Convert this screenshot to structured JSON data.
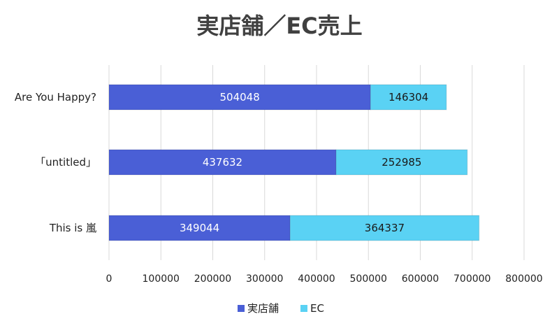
{
  "chart_data": {
    "type": "bar",
    "orientation": "horizontal",
    "stacked": true,
    "title": "実店舗／EC売上",
    "categories": [
      "Are You Happy?",
      "「untitled」",
      "This is 嵐"
    ],
    "series": [
      {
        "name": "実店舗",
        "values": [
          504048,
          437632,
          349044
        ],
        "color": "#4a5fd6",
        "label_color": "#ffffff"
      },
      {
        "name": "EC",
        "values": [
          146304,
          252985,
          364337
        ],
        "color": "#5ad2f4",
        "label_color": "#1a1a1a"
      }
    ],
    "xlim": [
      0,
      800000
    ],
    "x_ticks": [
      "0",
      "100000",
      "200000",
      "300000",
      "400000",
      "500000",
      "600000",
      "700000",
      "800000"
    ],
    "xlabel": "",
    "ylabel": "",
    "grid": true,
    "legend": "bottom"
  }
}
